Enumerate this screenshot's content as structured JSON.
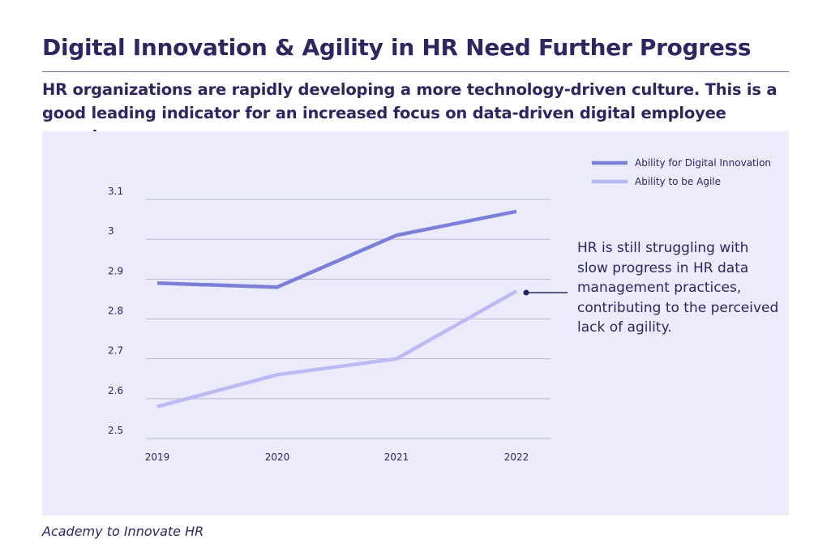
{
  "title": "Digital Innovation & Agility in HR Need Further Progress",
  "subtitle": "HR organizations are rapidly developing a more technology-driven culture. This is a good leading indicator for an increased focus on data-driven digital employee experience.",
  "annotation": "HR is still struggling with slow progress in HR data management practices, contributing to the perceived lack of agility.",
  "source": "Academy to Innovate HR",
  "colors": {
    "panel_bg": "#ecebfb",
    "series_innovation": "#7b7fd8",
    "series_agile": "#babaf5",
    "text": "#2b2760",
    "grid": "#b9b8cf"
  },
  "chart_data": {
    "type": "line",
    "x": [
      "2019",
      "2020",
      "2021",
      "2022"
    ],
    "ylim": [
      2.5,
      3.1
    ],
    "yticks": [
      "2.5",
      "2.6",
      "2.7",
      "2.8",
      "2.9",
      "3",
      "3.1"
    ],
    "grid": true,
    "legend_position": "top-right",
    "series": [
      {
        "name": "Ability for Digital Innovation",
        "values": [
          2.89,
          2.88,
          3.01,
          3.07
        ],
        "color": "#7b7fd8"
      },
      {
        "name": "Ability to be Agile",
        "values": [
          2.58,
          2.66,
          2.7,
          2.87
        ],
        "color": "#babaf5"
      }
    ]
  }
}
